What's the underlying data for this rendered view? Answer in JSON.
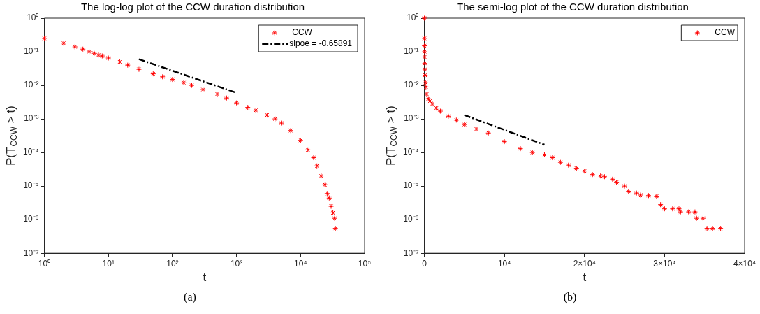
{
  "chart_data": [
    {
      "type": "scatter",
      "title": "The log-log plot of the CCW duration distribution",
      "xlabel": "t",
      "ylabel": "P(T$_{CCW}$ > t)",
      "log": "xy",
      "grid": false,
      "legend": "top right",
      "xlim": [
        1,
        100000
      ],
      "xticks": [
        {
          "value": 1,
          "label": "10⁰"
        },
        {
          "value": 10,
          "label": "10¹"
        },
        {
          "value": 100,
          "label": "10²"
        },
        {
          "value": 1000,
          "label": "10³"
        },
        {
          "value": 10000,
          "label": "10⁴"
        },
        {
          "value": 100000,
          "label": "10⁵"
        }
      ],
      "ylim": [
        1e-07,
        1
      ],
      "yticks": [
        {
          "value": 1e-07,
          "label": "10⁻⁷"
        },
        {
          "value": 1e-06,
          "label": "10⁻⁶"
        },
        {
          "value": 1e-05,
          "label": "10⁻⁵"
        },
        {
          "value": 0.0001,
          "label": "10⁻⁴"
        },
        {
          "value": 0.001,
          "label": "10⁻³"
        },
        {
          "value": 0.01,
          "label": "10⁻²"
        },
        {
          "value": 0.1,
          "label": "10⁻¹"
        },
        {
          "value": 1,
          "label": "10⁰"
        }
      ],
      "annotations": [
        "(a)"
      ],
      "series": [
        {
          "name": "CCW",
          "marker": "cross",
          "color": "#ff0000",
          "x": [
            1,
            2,
            3,
            4,
            5,
            6,
            7,
            8,
            10,
            15,
            20,
            30,
            50,
            70,
            100,
            150,
            200,
            300,
            500,
            700,
            1000,
            1500,
            2000,
            3000,
            4000,
            5000,
            7000,
            10000,
            13000,
            16000,
            18000,
            21000,
            24000,
            26000,
            28000,
            30000,
            32000,
            34000,
            35000
          ],
          "values": [
            0.25,
            0.18,
            0.14,
            0.12,
            0.1,
            0.09,
            0.08,
            0.075,
            0.065,
            0.05,
            0.04,
            0.03,
            0.022,
            0.018,
            0.015,
            0.012,
            0.01,
            0.0075,
            0.0055,
            0.0042,
            0.003,
            0.0022,
            0.0018,
            0.0013,
            0.001,
            0.00075,
            0.00045,
            0.00023,
            0.00012,
            7e-05,
            4e-05,
            2e-05,
            1.1e-05,
            6e-06,
            4.4e-06,
            2.5e-06,
            1.6e-06,
            1.1e-06,
            5.5e-07
          ]
        },
        {
          "name": "slpoe = -0.65891",
          "type": "line",
          "marker": "none",
          "line_style": "dashed",
          "color": "#000000",
          "x": [
            30,
            1000
          ],
          "values": [
            0.06,
            0.006
          ]
        }
      ]
    },
    {
      "type": "scatter",
      "title": "The semi-log plot of the CCW duration distribution",
      "xlabel": "t",
      "ylabel": "P(T$_{CCW}$ > t)",
      "log": "y",
      "grid": false,
      "legend": "top right",
      "xlim": [
        0,
        40000
      ],
      "xticks": [
        0,
        {
          "value": 10000,
          "label": "10⁴"
        },
        {
          "value": 20000,
          "label": "2×10⁴"
        },
        {
          "value": 30000,
          "label": "3×10⁴"
        },
        {
          "value": 40000,
          "label": "4×10⁴"
        }
      ],
      "ylim": [
        1e-07,
        1
      ],
      "yticks": [
        {
          "value": 1e-07,
          "label": "10⁻⁷"
        },
        {
          "value": 1e-06,
          "label": "10⁻⁶"
        },
        {
          "value": 1e-05,
          "label": "10⁻⁵"
        },
        {
          "value": 0.0001,
          "label": "10⁻⁴"
        },
        {
          "value": 0.001,
          "label": "10⁻³"
        },
        {
          "value": 0.01,
          "label": "10⁻²"
        },
        {
          "value": 0.1,
          "label": "10⁻¹"
        },
        {
          "value": 1,
          "label": "10⁰"
        }
      ],
      "annotations": [
        "(b)"
      ],
      "series": [
        {
          "name": "CCW",
          "marker": "cross",
          "color": "#ff0000",
          "x": [
            0,
            10,
            20,
            30,
            40,
            60,
            80,
            100,
            150,
            200,
            300,
            500,
            700,
            1000,
            1500,
            2000,
            3000,
            4000,
            5000,
            6500,
            8000,
            10000,
            12000,
            13500,
            15000,
            16000,
            17000,
            18000,
            19000,
            20000,
            21000,
            22000,
            22500,
            23500,
            24000,
            25000,
            25500,
            26500,
            27000,
            28000,
            29000,
            29500,
            30000,
            31000,
            31800,
            32000,
            33000,
            33800,
            34000,
            34800,
            35300,
            36000,
            37000
          ],
          "values": [
            1,
            0.25,
            0.15,
            0.1,
            0.07,
            0.045,
            0.03,
            0.02,
            0.012,
            0.009,
            0.0055,
            0.004,
            0.0034,
            0.0028,
            0.0021,
            0.0017,
            0.0012,
            0.00092,
            0.00068,
            0.0005,
            0.00038,
            0.00021,
            0.00013,
            0.0001,
            8.5e-05,
            7e-05,
            5.1e-05,
            4.2e-05,
            3.4e-05,
            2.8e-05,
            2.2e-05,
            2e-05,
            1.9e-05,
            1.6e-05,
            1.3e-05,
            1e-05,
            7e-06,
            6.2e-06,
            5.4e-06,
            5.2e-06,
            5e-06,
            2.8e-06,
            2.1e-06,
            2.1e-06,
            2.1e-06,
            1.7e-06,
            1.7e-06,
            1.7e-06,
            1.1e-06,
            1.1e-06,
            5.5e-07,
            5.5e-07,
            5.5e-07
          ]
        },
        {
          "type": "line",
          "marker": "none",
          "line_style": "dashed",
          "color": "#000000",
          "x": [
            5000,
            15000
          ],
          "values": [
            0.0013,
            0.00017
          ]
        }
      ]
    }
  ]
}
